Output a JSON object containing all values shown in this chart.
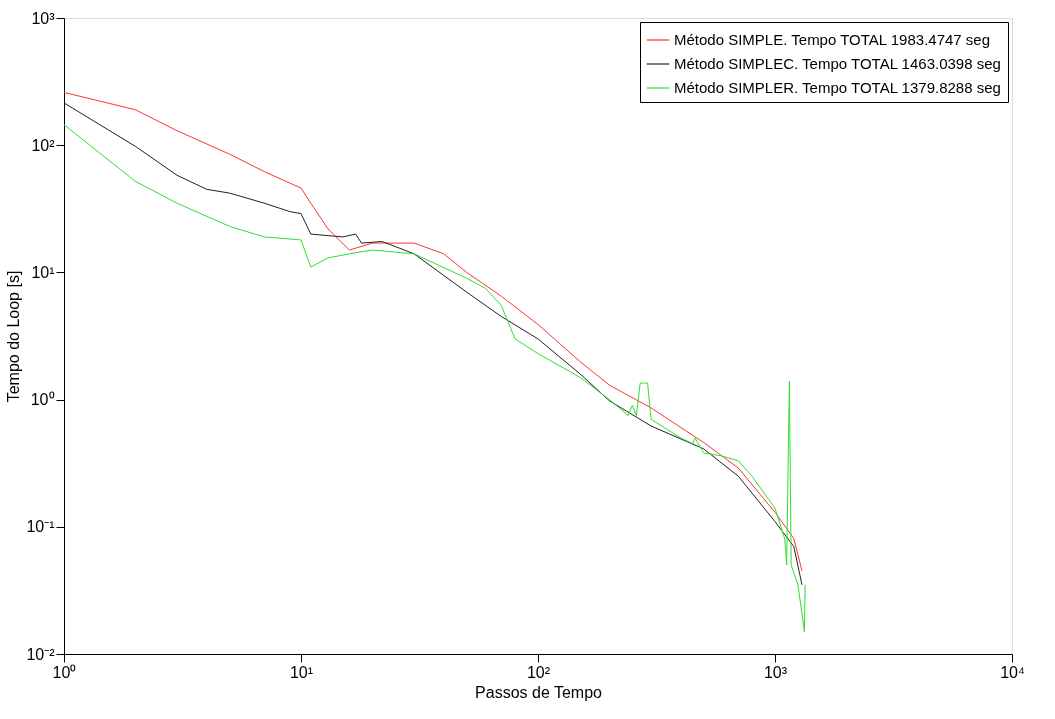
{
  "chart_data": {
    "type": "line",
    "xlabel": "Passos de Tempo",
    "ylabel": "Tempo do Loop [s]",
    "log": "xy",
    "grid": false,
    "legend": "top right",
    "marker": "none",
    "line_style": "solid",
    "xlim": [
      1,
      10000
    ],
    "ylim": [
      0.01,
      1000
    ],
    "xticks": [
      {
        "value": 1,
        "label": "10⁰"
      },
      {
        "value": 10,
        "label": "10¹"
      },
      {
        "value": 100,
        "label": "10²"
      },
      {
        "value": 1000,
        "label": "10³"
      },
      {
        "value": 10000,
        "label": "10⁴"
      }
    ],
    "yticks": [
      {
        "value": 0.01,
        "label": "10⁻²"
      },
      {
        "value": 0.1,
        "label": "10⁻¹"
      },
      {
        "value": 1,
        "label": "10⁰"
      },
      {
        "value": 10,
        "label": "10¹"
      },
      {
        "value": 100,
        "label": "10²"
      },
      {
        "value": 1000,
        "label": "10³"
      }
    ],
    "series": [
      {
        "name": "Método SIMPLE. Tempo TOTAL 1983.4747 seg",
        "color": "#ff3333",
        "x": [
          1,
          2,
          3,
          5,
          7,
          10,
          11,
          13,
          16,
          18,
          20,
          30,
          40,
          50,
          70,
          100,
          150,
          200,
          300,
          500,
          700,
          1000,
          1200,
          1300
        ],
        "values": [
          260,
          190,
          130,
          85,
          62,
          46,
          35,
          22,
          15,
          16,
          17,
          17,
          14,
          10,
          6.5,
          3.9,
          2.0,
          1.3,
          0.86,
          0.46,
          0.29,
          0.13,
          0.081,
          0.045
        ]
      },
      {
        "name": "Método SIMPLEC. Tempo TOTAL 1463.0398 seg",
        "color": "#222222",
        "x": [
          1,
          2,
          3,
          4,
          5,
          7,
          9,
          10,
          11,
          15,
          17,
          18,
          22,
          30,
          50,
          70,
          100,
          150,
          200,
          300,
          500,
          700,
          1000,
          1200,
          1300
        ],
        "values": [
          215,
          98,
          58,
          45,
          42,
          35,
          30,
          29,
          20,
          19,
          20,
          17,
          17.5,
          14,
          7,
          4.5,
          3.0,
          1.6,
          0.98,
          0.62,
          0.41,
          0.25,
          0.11,
          0.07,
          0.035
        ]
      },
      {
        "name": "Método SIMPLER. Tempo TOTAL 1379.8288 seg",
        "color": "#33dd33",
        "x": [
          1,
          2,
          3,
          5,
          7,
          10,
          11,
          13,
          16,
          20,
          30,
          50,
          60,
          70,
          80,
          100,
          150,
          200,
          240,
          250,
          260,
          270,
          290,
          300,
          400,
          450,
          460,
          500,
          600,
          700,
          800,
          1000,
          1100,
          1120,
          1150,
          1170,
          1250,
          1330,
          1340
        ],
        "values": [
          145,
          52,
          35,
          23,
          19,
          18,
          11,
          13,
          14,
          15,
          14,
          9,
          7.5,
          5.5,
          3,
          2.3,
          1.5,
          1.0,
          0.75,
          0.9,
          0.75,
          1.35,
          1.35,
          0.7,
          0.5,
          0.45,
          0.5,
          0.38,
          0.36,
          0.33,
          0.25,
          0.14,
          0.08,
          0.05,
          1.4,
          0.05,
          0.035,
          0.015,
          0.035
        ]
      }
    ]
  }
}
